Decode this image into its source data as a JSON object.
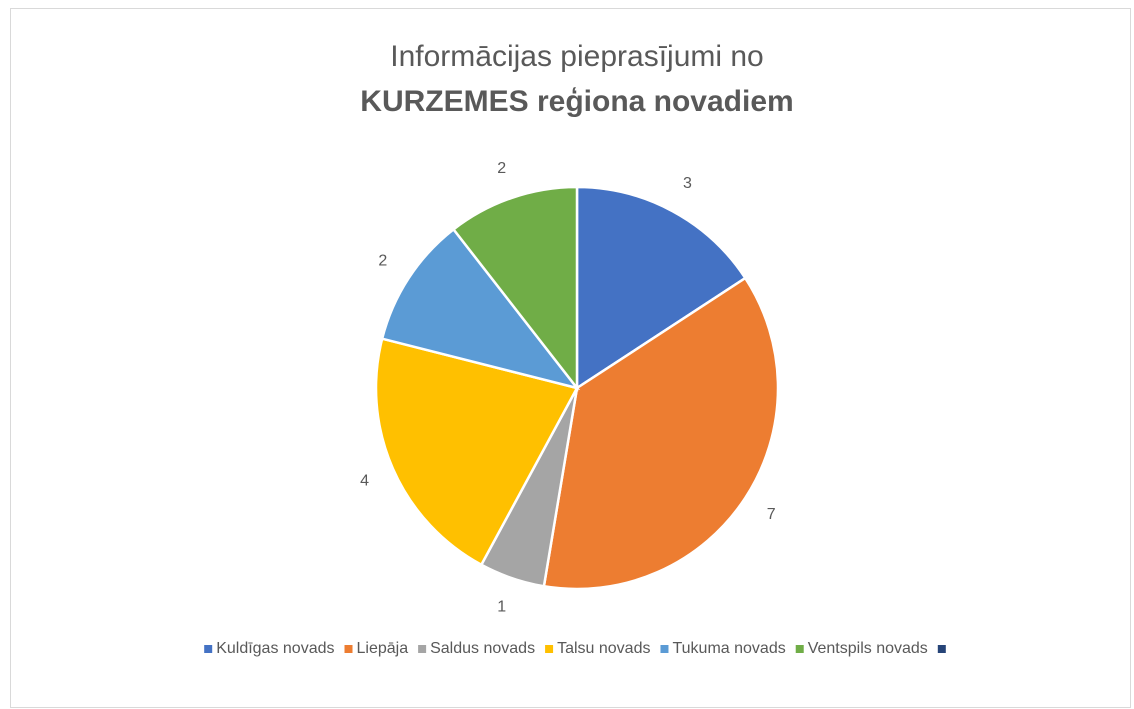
{
  "chart_data": {
    "type": "pie",
    "title": "Informācijas pieprasījumi no",
    "subtitle": "KURZEMES reģiona novadiem",
    "categories": [
      "Kuldīgas novads",
      "Liepāja",
      "Saldus novads",
      "Talsu novads",
      "Tukuma novads",
      "Ventspils novads",
      null
    ],
    "values": [
      3,
      7,
      1,
      4,
      2,
      2,
      null
    ],
    "colors": [
      "#4472c4",
      "#ed7d31",
      "#a5a5a5",
      "#ffc000",
      "#5b9bd5",
      "#70ad47",
      "#264478"
    ],
    "legend": "bottom"
  }
}
